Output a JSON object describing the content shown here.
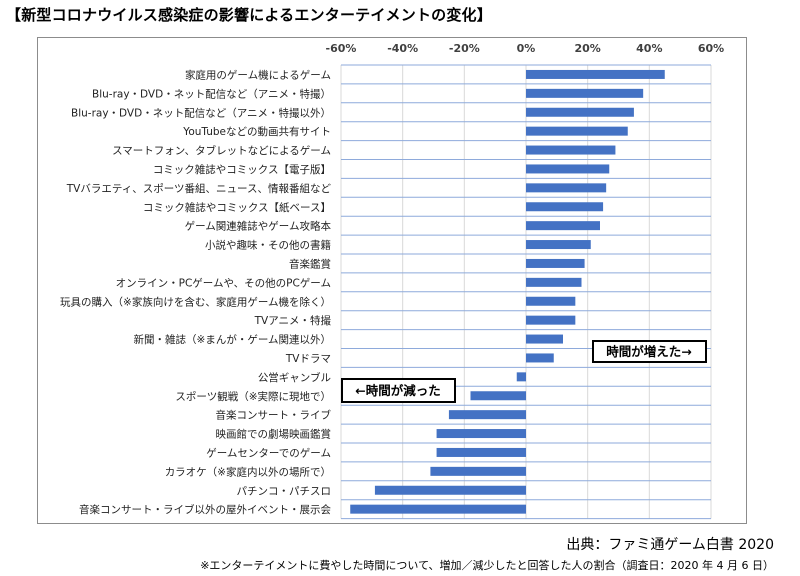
{
  "title": "【新型コロナウイルス感染症の影響によるエンターテイメントの変化】",
  "source": "出典：ファミ通ゲーム白書 2020",
  "footnote": "※エンターテイメントに費やした時間について、増加／減少したと回答した人の割合（調査日：2020 年 4 月 6 日）",
  "annotations": {
    "increase": "時間が増えた→",
    "decrease": "←時間が減った"
  },
  "colors": {
    "bar": "#4472c4",
    "grid": "#d9d9d9",
    "row_line": "#8eaadb"
  },
  "chart_data": {
    "type": "bar",
    "orientation": "horizontal",
    "x_axis_position": "top",
    "xlim": [
      -60,
      60
    ],
    "xticks": [
      "-60%",
      "-40%",
      "-20%",
      "0%",
      "20%",
      "40%",
      "60%"
    ],
    "grid": true,
    "categories": [
      "家庭用のゲーム機によるゲーム",
      "Blu-ray・DVD・ネット配信など（アニメ・特撮）",
      "Blu-ray・DVD・ネット配信など（アニメ・特撮以外）",
      "YouTubeなどの動画共有サイト",
      "スマートフォン、タブレットなどによるゲーム",
      "コミック雑誌やコミックス【電子版】",
      "TVバラエティ、スポーツ番組、ニュース、情報番組など",
      "コミック雑誌やコミックス【紙ベース】",
      "ゲーム関連雑誌やゲーム攻略本",
      "小説や趣味・その他の書籍",
      "音楽鑑賞",
      "オンライン・PCゲームや、その他のPCゲーム",
      "玩具の購入（※家族向けを含む、家庭用ゲーム機を除く）",
      "TVアニメ・特撮",
      "新聞・雑誌（※まんが・ゲーム関連以外）",
      "TVドラマ",
      "公営ギャンブル",
      "スポーツ観戦（※実際に現地で）",
      "音楽コンサート・ライブ",
      "映画館での劇場映画鑑賞",
      "ゲームセンターでのゲーム",
      "カラオケ（※家庭内以外の場所で）",
      "パチンコ・パチスロ",
      "音楽コンサート・ライブ以外の屋外イベント・展示会"
    ],
    "values": [
      45,
      38,
      35,
      33,
      29,
      27,
      26,
      25,
      24,
      21,
      19,
      18,
      16,
      16,
      12,
      9,
      -3,
      -18,
      -25,
      -29,
      -29,
      -31,
      -49,
      -57
    ]
  }
}
